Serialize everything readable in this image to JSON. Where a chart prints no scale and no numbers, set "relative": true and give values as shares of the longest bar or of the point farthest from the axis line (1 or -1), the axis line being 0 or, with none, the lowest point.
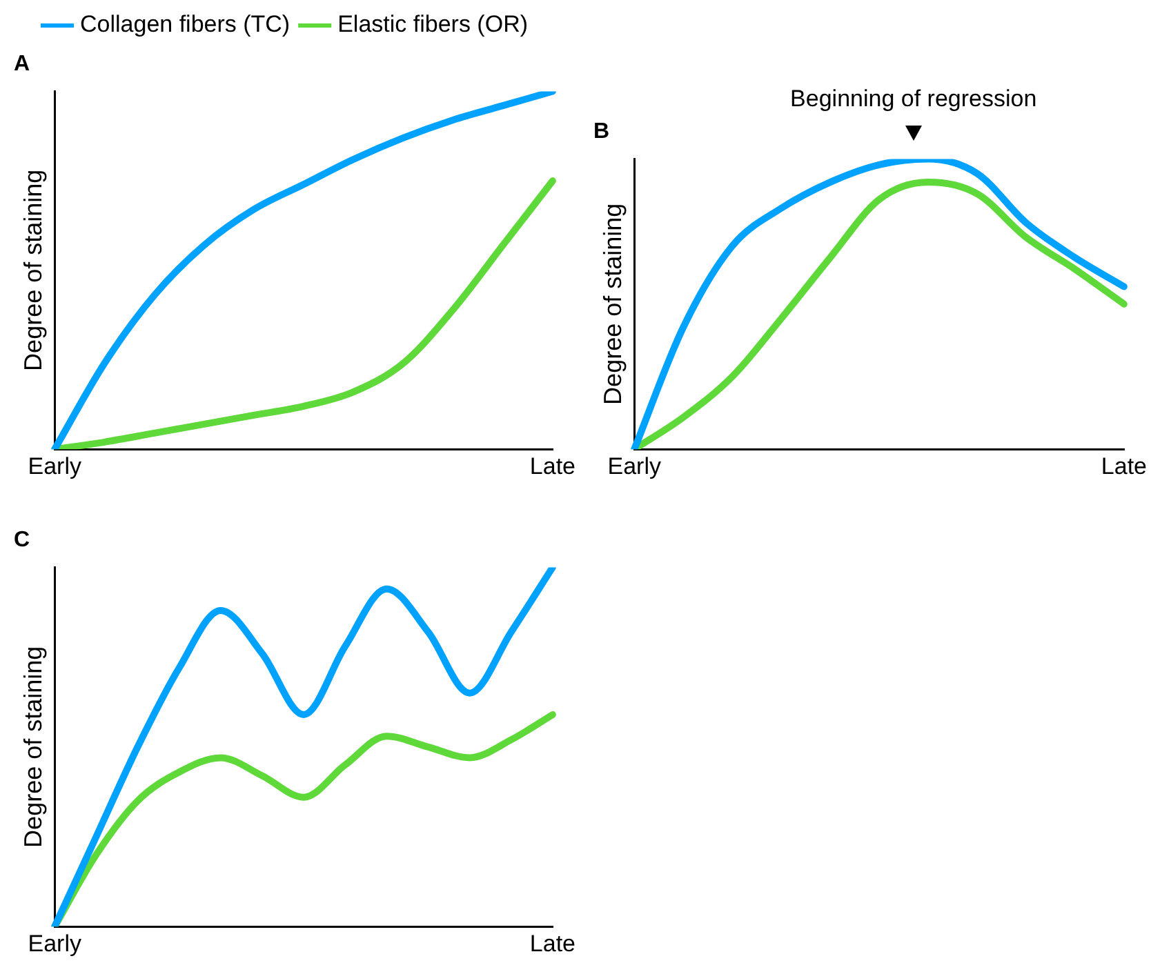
{
  "chart_data": [
    {
      "type": "line",
      "title": "A",
      "ylabel": "Degree of staining",
      "relative": true,
      "legend": "top",
      "tick_labels": "x",
      "categories": [
        "Early",
        null,
        null,
        null,
        null,
        null,
        null,
        null,
        null,
        null,
        "Late"
      ],
      "series": [
        {
          "name": "Collagen fibers (TC)",
          "color": "#00a2ff",
          "values": [
            0,
            0.24,
            0.43,
            0.57,
            0.67,
            0.74,
            0.81,
            0.87,
            0.92,
            0.96,
            1
          ]
        },
        {
          "name": "Elastic fibers (OR)",
          "color": "#5fd93a",
          "values": [
            0,
            0.02,
            0.045,
            0.07,
            0.095,
            0.12,
            0.16,
            0.24,
            0.39,
            0.57,
            0.75
          ]
        }
      ]
    },
    {
      "type": "line",
      "title": "B",
      "ylabel": "Degree of staining",
      "relative": true,
      "tick_labels": "x",
      "annotations": [
        "Beginning of regression"
      ],
      "categories": [
        "Early",
        null,
        null,
        null,
        null,
        null,
        null,
        null,
        null,
        null,
        "Late"
      ],
      "series": [
        {
          "color": "#00a2ff",
          "values": [
            0,
            0.42,
            0.7,
            0.83,
            0.92,
            0.98,
            1,
            0.95,
            0.78,
            0.66,
            0.56
          ]
        },
        {
          "color": "#5fd93a",
          "values": [
            0,
            0.11,
            0.25,
            0.45,
            0.66,
            0.86,
            0.92,
            0.88,
            0.73,
            0.62,
            0.5
          ]
        }
      ]
    },
    {
      "type": "line",
      "title": "C",
      "ylabel": "Degree of staining",
      "relative": true,
      "tick_labels": "x",
      "categories": [
        "Early",
        null,
        null,
        null,
        null,
        null,
        null,
        null,
        null,
        null,
        null,
        null,
        "Late"
      ],
      "series": [
        {
          "color": "#00a2ff",
          "values": [
            0,
            0.25,
            0.5,
            0.72,
            0.88,
            0.76,
            0.59,
            0.78,
            0.94,
            0.82,
            0.65,
            0.82,
            1
          ]
        },
        {
          "color": "#5fd93a",
          "values": [
            0,
            0.2,
            0.35,
            0.43,
            0.47,
            0.42,
            0.36,
            0.45,
            0.53,
            0.5,
            0.47,
            0.52,
            0.59
          ]
        }
      ]
    }
  ]
}
